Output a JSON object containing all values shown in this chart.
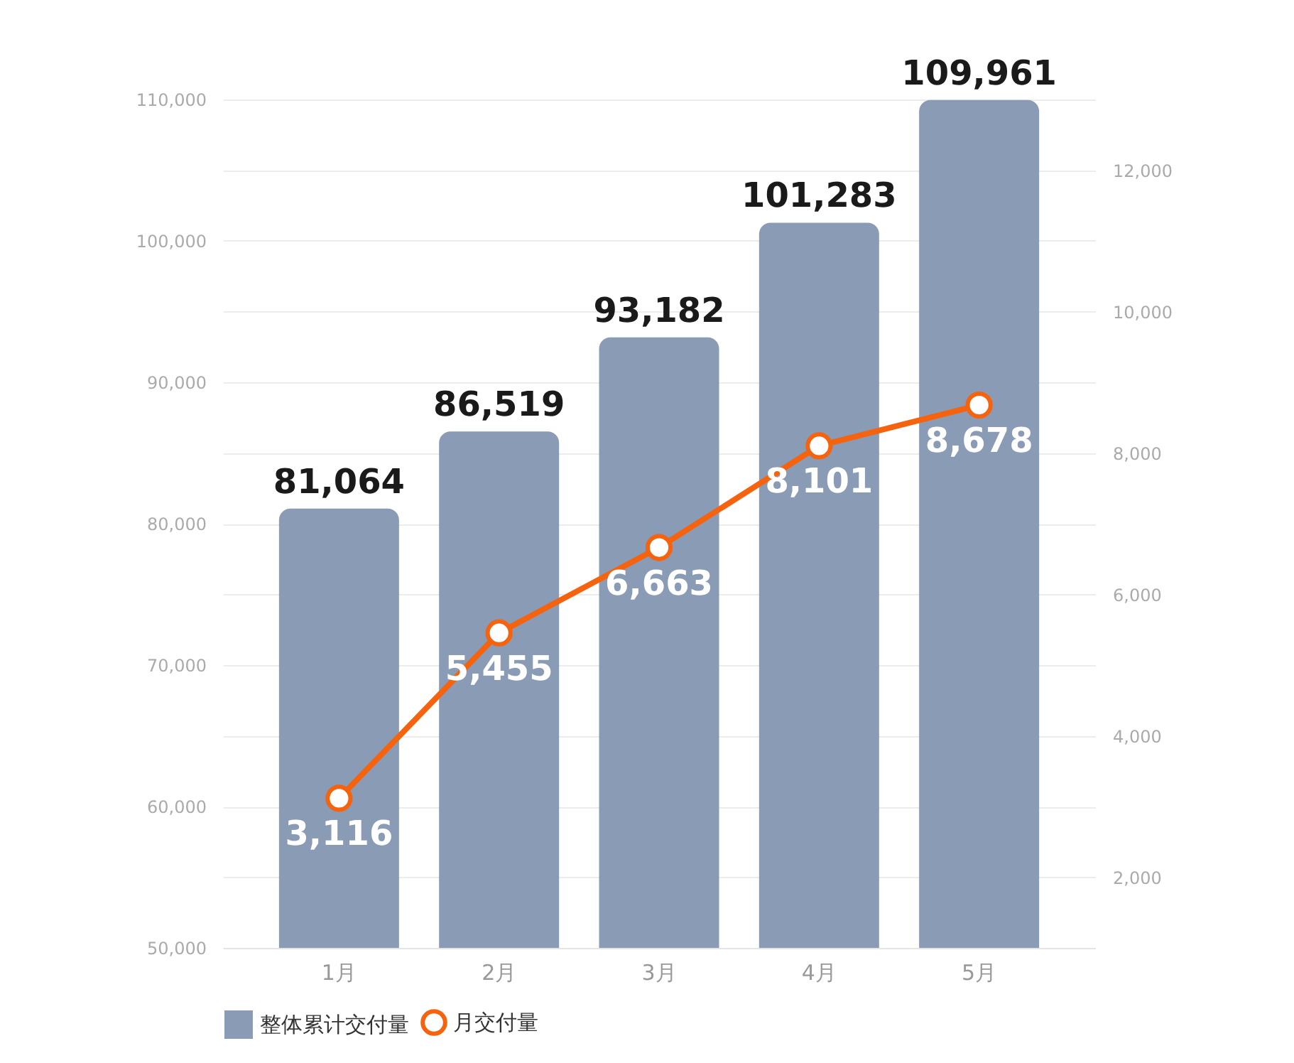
{
  "chart_data": {
    "type": "bar",
    "categories": [
      "1月",
      "2月",
      "3月",
      "4月",
      "5月"
    ],
    "series": [
      {
        "name": "整体累计交付量",
        "color": "#8a9bb5",
        "values": [
          81064,
          86519,
          93182,
          101283,
          109961
        ],
        "value_labels": [
          "81,064",
          "86,519",
          "93,182",
          "101,283",
          "109,961"
        ]
      },
      {
        "name": "月交付量",
        "type": "line",
        "axis": "y2",
        "color": "#f5630f",
        "values": [
          3116,
          5455,
          6663,
          8101,
          8678
        ],
        "value_labels": [
          "3,116",
          "5,455",
          "6,663",
          "8,101",
          "8,678"
        ]
      }
    ],
    "ylim": [
      50000,
      110000
    ],
    "yticks": [
      {
        "value": 50000,
        "label": "50,000"
      },
      {
        "value": 60000,
        "label": "60,000"
      },
      {
        "value": 70000,
        "label": "70,000"
      },
      {
        "value": 80000,
        "label": "80,000"
      },
      {
        "value": 90000,
        "label": "90,000"
      },
      {
        "value": 100000,
        "label": "100,000"
      },
      {
        "value": 110000,
        "label": "110,000"
      }
    ],
    "y2lim": [
      1000,
      13000
    ],
    "y2ticks": [
      {
        "value": 2000,
        "label": "2,000"
      },
      {
        "value": 4000,
        "label": "4,000"
      },
      {
        "value": 6000,
        "label": "6,000"
      },
      {
        "value": 8000,
        "label": "8,000"
      },
      {
        "value": 10000,
        "label": "10,000"
      },
      {
        "value": 12000,
        "label": "12,000"
      }
    ],
    "grid": true,
    "legend": "bottom",
    "marker": "circle",
    "line_style": "solid"
  }
}
